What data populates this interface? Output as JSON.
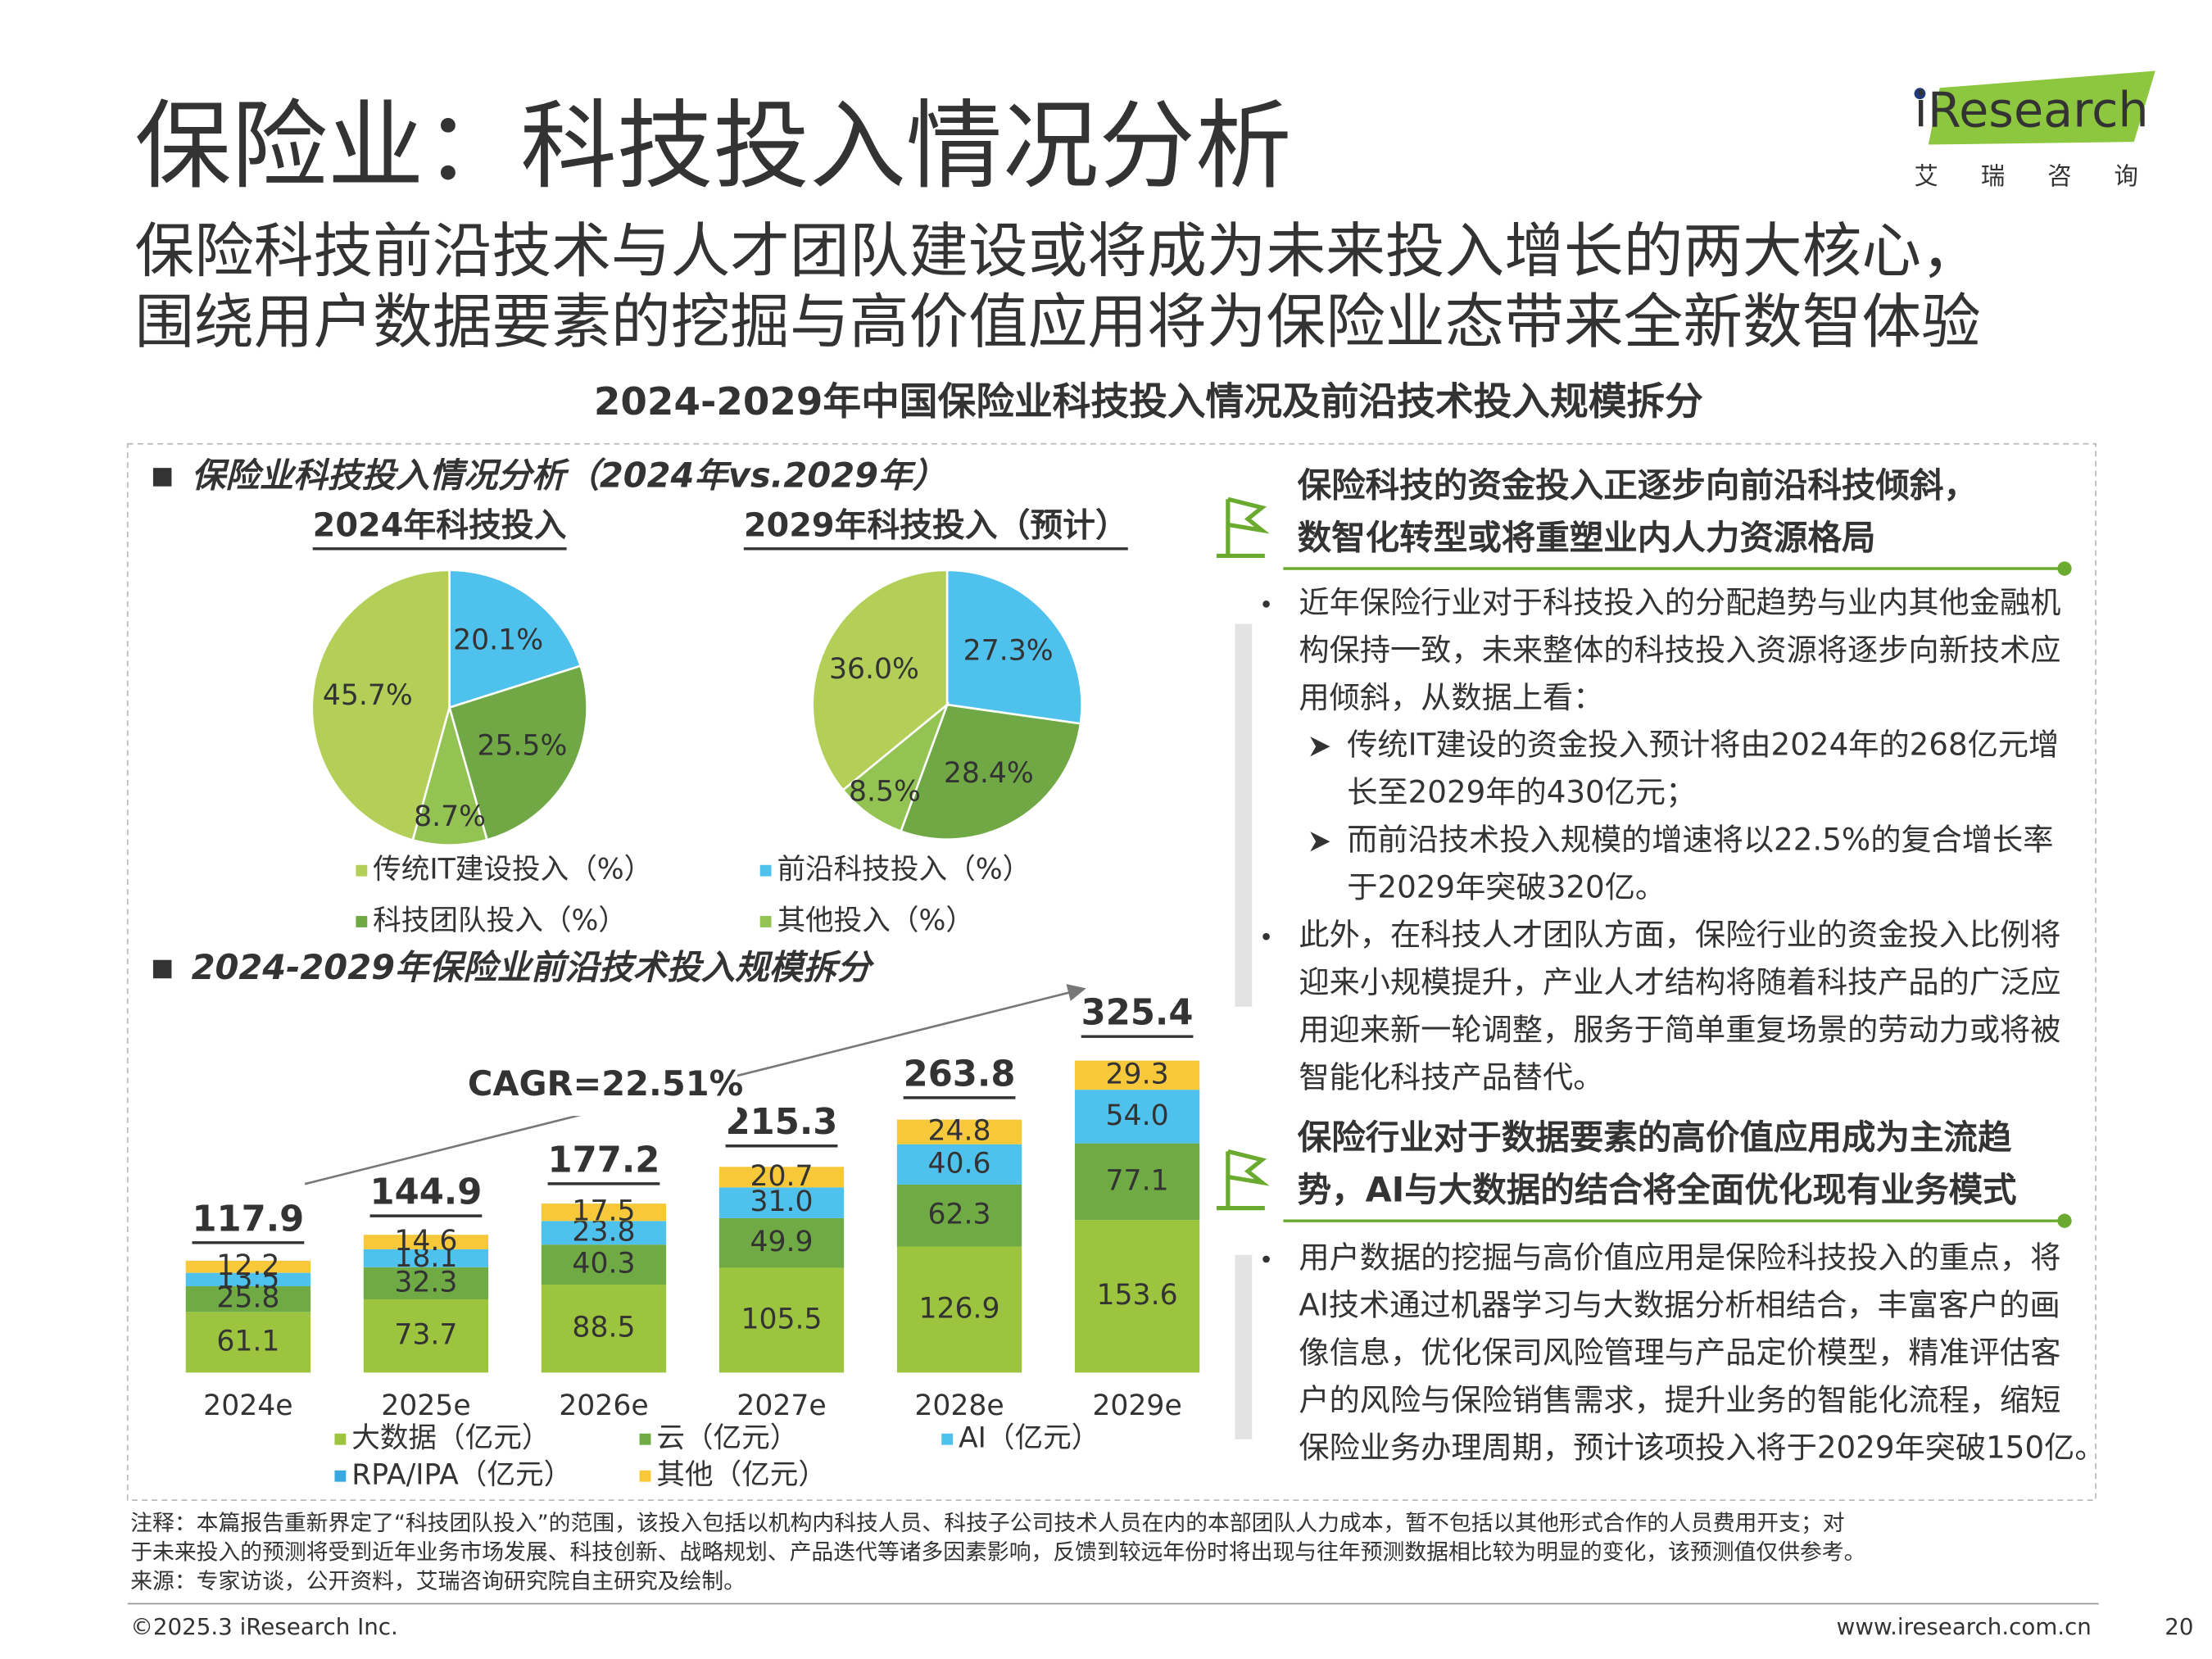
{
  "header": {
    "title": "保险业：科技投入情况分析",
    "subtitle_lines": [
      "保险科技前沿技术与人才团队建设或将成为未来投入增长的两大核心，",
      "围绕用户数据要素的挖掘与高价值应用将为保险业态带来全新数智体验"
    ],
    "logo": "iResearch",
    "logo_cn": "艾瑞咨询",
    "figure_title": "2024-2029年中国保险业科技投入情况及前沿技术投入规模拆分"
  },
  "sections": [
    "保险业科技投入情况分析（2024年vs.2029年）",
    "2024-2029年保险业前沿技术投入规模拆分"
  ],
  "chart_data": [
    {
      "type": "pie",
      "categories": [
        "传统IT建设投入（%）",
        "前沿科技投入（%）",
        "科技团队投入（%）",
        "其他投入（%）"
      ],
      "colors": [
        "#b3cf58",
        "#4ec1ec",
        "#6fa844",
        "#92c353"
      ],
      "pies": [
        {
          "title": "2024年科技投入",
          "values": [
            45.7,
            20.1,
            25.5,
            8.7
          ],
          "value_labels": [
            "45.7%",
            "20.1%",
            "25.5%",
            "8.7%"
          ]
        },
        {
          "title": "2029年科技投入（预计）",
          "values": [
            36,
            27.3,
            28.4,
            8.5
          ],
          "value_labels": [
            "36.0%",
            "27.3%",
            "28.4%",
            "8.5%"
          ]
        }
      ]
    },
    {
      "type": "stacked_bar",
      "categories": [
        "2024e",
        "2025e",
        "2026e",
        "2027e",
        "2028e",
        "2029e"
      ],
      "series": [
        {
          "name": "大数据（亿元）",
          "color": "#9cc43e",
          "values": [
            61.1,
            73.7,
            88.5,
            105.5,
            126.9,
            153.6
          ]
        },
        {
          "name": "云（亿元）",
          "color": "#6faa45",
          "values": [
            25.8,
            32.3,
            40.3,
            49.9,
            62.3,
            77.1
          ]
        },
        {
          "name": "AI（亿元）",
          "color": "#4ec1ec",
          "values": [
            13.5,
            18.1,
            23.8,
            31,
            40.6,
            54
          ],
          "value_labels": [
            "13.5",
            "18.1",
            "23.8",
            "31.0",
            "40.6",
            "54.0"
          ]
        },
        {
          "name": "RPA/IPA（亿元）",
          "color": "#3aa8e0",
          "values": [
            null,
            null,
            null,
            null,
            null,
            null
          ]
        },
        {
          "name": "其他（亿元）",
          "color": "#f7c83a",
          "values": [
            12.2,
            14.6,
            17.5,
            20.7,
            24.8,
            29.3
          ]
        }
      ],
      "totals": [
        117.9,
        144.9,
        177.2,
        215.3,
        263.8,
        325.4
      ],
      "annotation": "CAGR=22.51%"
    }
  ],
  "panel": [
    {
      "heading_lines": [
        "保险科技的资金投入正逐步向前沿科技倾斜，",
        "数智化转型或将重塑业内人力资源格局"
      ],
      "items": [
        {
          "level": 1,
          "lines": [
            "近年保险行业对于科技投入的分配趋势与业内其他金融机",
            "构保持一致，未来整体的科技投入资源将逐步向新技术应",
            "用倾斜，从数据上看："
          ]
        },
        {
          "level": 2,
          "lines": [
            "传统IT建设的资金投入预计将由2024年的268亿元增",
            "长至2029年的430亿元；"
          ]
        },
        {
          "level": 2,
          "lines": [
            "而前沿技术投入规模的增速将以22.5%的复合增长率",
            "于2029年突破320亿。"
          ]
        },
        {
          "level": 1,
          "lines": [
            "此外，在科技人才团队方面，保险行业的资金投入比例将",
            "迎来小规模提升，产业人才结构将随着科技产品的广泛应",
            "用迎来新一轮调整，服务于简单重复场景的劳动力或将被",
            "智能化科技产品替代。"
          ]
        }
      ]
    },
    {
      "heading_lines": [
        "保险行业对于数据要素的高价值应用成为主流趋",
        "势，AI与大数据的结合将全面优化现有业务模式"
      ],
      "items": [
        {
          "level": 1,
          "lines": [
            "用户数据的挖掘与高价值应用是保险科技投入的重点，将",
            "AI技术通过机器学习与大数据分析相结合，丰富客户的画",
            "像信息，优化保司风险管理与产品定价模型，精准评估客",
            "户的风险与保险销售需求，提升业务的智能化流程，缩短",
            "保险业务办理周期，预计该项投入将于2029年突破150亿。"
          ]
        }
      ]
    }
  ],
  "notes": [
    "注释：本篇报告重新界定了“科技团队投入”的范围，该投入包括以机构内科技人员、科技子公司技术人员在内的本部团队人力成本，暂不包括以其他形式合作的人员费用开支；对",
    "于未来投入的预测将受到近年业务市场发展、科技创新、战略规划、产品迭代等诸多因素影响，反馈到较远年份时将出现与往年预测数据相比较为明显的变化，该预测值仅供参考。",
    "来源：专家访谈，公开资料，艾瑞咨询研究院自主研究及绘制。"
  ],
  "footer": {
    "copyright": "©2025.3 iResearch Inc.",
    "url": "www.iresearch.com.cn",
    "page": 20
  }
}
